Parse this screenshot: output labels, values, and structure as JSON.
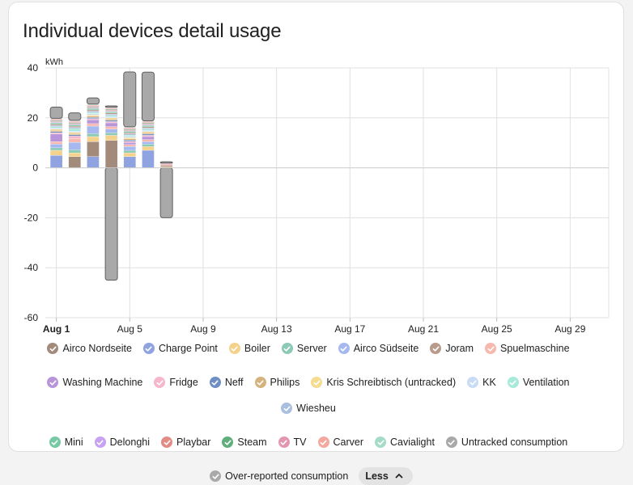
{
  "card": {
    "title": "Individual devices detail usage"
  },
  "chart_data": {
    "type": "bar",
    "stacked": true,
    "ylabel": "kWh",
    "ylim": [
      -60,
      40
    ],
    "yticks": [
      40,
      20,
      0,
      -20,
      -40,
      -60
    ],
    "ytick_labels": [
      "40",
      "20",
      "0",
      "-20",
      "-40",
      "-60"
    ],
    "xlim": [
      "Jul 31",
      "Aug 31"
    ],
    "xticks": [
      "Aug 1",
      "Aug 5",
      "Aug 9",
      "Aug 13",
      "Aug 17",
      "Aug 21",
      "Aug 25",
      "Aug 29"
    ],
    "xtick_day": [
      1,
      5,
      9,
      13,
      17,
      21,
      25,
      29
    ],
    "grid": true,
    "legend_position": "bottom",
    "categories": [
      "Aug 1",
      "Aug 2",
      "Aug 3",
      "Aug 4",
      "Aug 5",
      "Aug 6",
      "Aug 7"
    ],
    "category_day": [
      1,
      2,
      3,
      4,
      5,
      6,
      7
    ],
    "series": [
      {
        "name": "Charge Point",
        "color": "#8fa3e0",
        "values": [
          5,
          0,
          4.5,
          0,
          4.5,
          7,
          0
        ]
      },
      {
        "name": "Airco Nordseite",
        "color": "#a28b7b",
        "values": [
          0,
          4.5,
          6,
          11,
          0,
          0,
          0
        ]
      },
      {
        "name": "Boiler",
        "color": "#f4d28c",
        "values": [
          2,
          1.5,
          2,
          2,
          1.5,
          1.5,
          0
        ]
      },
      {
        "name": "Server",
        "color": "#8cc9b6",
        "values": [
          1,
          1.2,
          1.2,
          1,
          1,
          1,
          0
        ]
      },
      {
        "name": "Airco Südseite",
        "color": "#a6b8f0",
        "values": [
          1.5,
          3,
          3,
          1.5,
          1.5,
          1,
          0
        ]
      },
      {
        "name": "Spuelmaschine",
        "color": "#f7b9ae",
        "values": [
          1,
          1.5,
          1,
          1,
          0.8,
          0.8,
          0
        ]
      },
      {
        "name": "Washing Machine",
        "color": "#b894d9",
        "values": [
          3,
          0,
          1.5,
          1.5,
          0.8,
          1.2,
          0
        ]
      },
      {
        "name": "Fridge",
        "color": "#f5b7cc",
        "values": [
          0.5,
          1,
          0.5,
          0.5,
          0.5,
          0.5,
          0
        ]
      },
      {
        "name": "Neff",
        "color": "#6f8fc4",
        "values": [
          0.5,
          0.5,
          0.5,
          0.5,
          0.5,
          0.5,
          0
        ]
      },
      {
        "name": "Philips",
        "color": "#d6b27f",
        "values": [
          0.5,
          0.5,
          0.5,
          0.5,
          0.5,
          0.5,
          0.5
        ]
      },
      {
        "name": "Kris Schreibtisch (untracked)",
        "color": "#f6dc8f",
        "values": [
          0.5,
          0.5,
          0.5,
          0.5,
          0.5,
          0.5,
          0
        ]
      },
      {
        "name": "KK",
        "color": "#c9dcf5",
        "values": [
          0.5,
          0.5,
          0.5,
          0.5,
          0.5,
          0.5,
          0
        ]
      },
      {
        "name": "Ventilation",
        "color": "#a8ead9",
        "values": [
          0.5,
          1,
          0.5,
          0.5,
          0.5,
          0.5,
          0
        ]
      },
      {
        "name": "Wiesheu",
        "color": "#a9bfe0",
        "values": [
          0.5,
          0.5,
          0.5,
          0.5,
          0.5,
          0.5,
          0
        ]
      },
      {
        "name": "Joram",
        "color": "#b89b8a",
        "values": [
          0.5,
          0.5,
          0.5,
          0.5,
          0.5,
          0.5,
          0.5
        ]
      },
      {
        "name": "Mini",
        "color": "#77c9a3",
        "values": [
          0.5,
          0.5,
          0.5,
          0.5,
          0.5,
          0.5,
          0
        ]
      },
      {
        "name": "Delonghi",
        "color": "#c7a1f2",
        "values": [
          0.3,
          0.3,
          0.3,
          0.3,
          0.3,
          0.3,
          0
        ]
      },
      {
        "name": "Playbar",
        "color": "#e38b85",
        "values": [
          0.3,
          0.3,
          0.3,
          0.3,
          0.3,
          0.3,
          0.3
        ]
      },
      {
        "name": "Steam",
        "color": "#5fae7c",
        "values": [
          0.3,
          0.3,
          0.3,
          0.3,
          0.3,
          0.3,
          0
        ]
      },
      {
        "name": "TV",
        "color": "#e397ae",
        "values": [
          0.3,
          0.3,
          0.3,
          0.3,
          0.3,
          0.3,
          0.3
        ]
      },
      {
        "name": "Carver",
        "color": "#f5a99e",
        "values": [
          0.3,
          0.3,
          0.3,
          0.3,
          0.3,
          0.3,
          0.3
        ]
      },
      {
        "name": "Cavialight",
        "color": "#a5dcc8",
        "values": [
          0.3,
          0.3,
          0.3,
          0.3,
          0.3,
          0.3,
          0
        ]
      },
      {
        "name": "Untracked consumption",
        "color": "#a9a9a9",
        "values": [
          4.5,
          3,
          2.5,
          0.5,
          22,
          19.5,
          0.5
        ]
      },
      {
        "name": "Over-reported consumption",
        "color": "#a9a9a9",
        "values": [
          0,
          0,
          0,
          -45,
          0,
          0,
          -20
        ]
      }
    ]
  },
  "legend": {
    "items": [
      {
        "label": "Airco Nordseite",
        "color": "#a28b7b"
      },
      {
        "label": "Charge Point",
        "color": "#8fa3e0"
      },
      {
        "label": "Boiler",
        "color": "#f4d28c"
      },
      {
        "label": "Server",
        "color": "#8cc9b6"
      },
      {
        "label": "Airco Südseite",
        "color": "#a6b8f0"
      },
      {
        "label": "Joram",
        "color": "#b89b8a"
      },
      {
        "label": "Spuelmaschine",
        "color": "#f7b9ae"
      },
      {
        "label": "Washing Machine",
        "color": "#b894d9"
      },
      {
        "label": "Fridge",
        "color": "#f5b7cc"
      },
      {
        "label": "Neff",
        "color": "#6f8fc4"
      },
      {
        "label": "Philips",
        "color": "#d6b27f"
      },
      {
        "label": "Kris Schreibtisch (untracked)",
        "color": "#f6dc8f"
      },
      {
        "label": "KK",
        "color": "#c9dcf5"
      },
      {
        "label": "Ventilation",
        "color": "#a8ead9"
      },
      {
        "label": "Wiesheu",
        "color": "#a9bfe0"
      },
      {
        "label": "Mini",
        "color": "#77c9a3"
      },
      {
        "label": "Delonghi",
        "color": "#c7a1f2"
      },
      {
        "label": "Playbar",
        "color": "#e38b85"
      },
      {
        "label": "Steam",
        "color": "#5fae7c"
      },
      {
        "label": "TV",
        "color": "#e397ae"
      },
      {
        "label": "Carver",
        "color": "#f5a99e"
      },
      {
        "label": "Cavialight",
        "color": "#a5dcc8"
      },
      {
        "label": "Untracked consumption",
        "color": "#a9a9a9"
      },
      {
        "label": "Over-reported consumption",
        "color": "#a9a9a9"
      }
    ],
    "toggle_label": "Less",
    "toggle_icon": "chevron-up-icon"
  }
}
